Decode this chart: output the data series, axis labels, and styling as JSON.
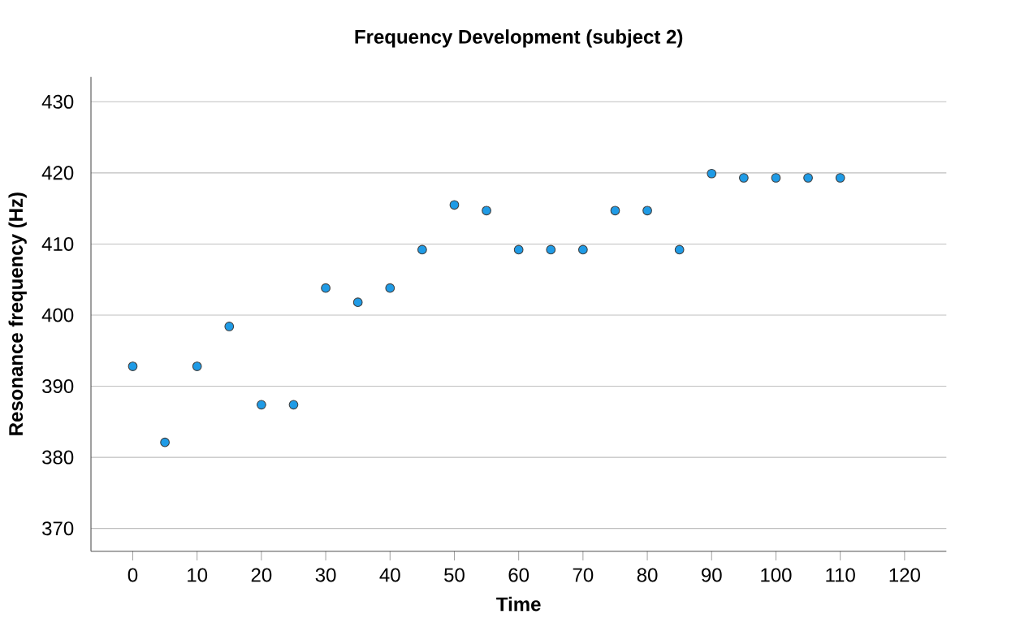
{
  "chart_data": {
    "type": "scatter",
    "title": "Frequency Development (subject 2)",
    "xlabel": "Time",
    "ylabel": "Resonance frequency (Hz)",
    "x": [
      0,
      5,
      10,
      15,
      20,
      25,
      30,
      35,
      40,
      45,
      50,
      55,
      60,
      65,
      70,
      75,
      80,
      85,
      90,
      95,
      100,
      105,
      110
    ],
    "values": [
      392.8,
      382.1,
      392.8,
      398.4,
      387.4,
      387.4,
      403.8,
      401.8,
      403.8,
      409.2,
      415.5,
      414.7,
      409.2,
      409.2,
      409.2,
      414.7,
      414.7,
      409.2,
      419.9,
      419.3,
      419.3,
      419.3,
      419.3
    ],
    "color": "#1f9be6",
    "grid": "y",
    "xlim": [
      -6.5,
      126.5
    ],
    "ylim": [
      366.8,
      433.5
    ],
    "xticks": [
      0,
      10,
      20,
      30,
      40,
      50,
      60,
      70,
      80,
      90,
      100,
      110,
      120
    ],
    "yticks": [
      370,
      380,
      390,
      400,
      410,
      420,
      430
    ]
  }
}
